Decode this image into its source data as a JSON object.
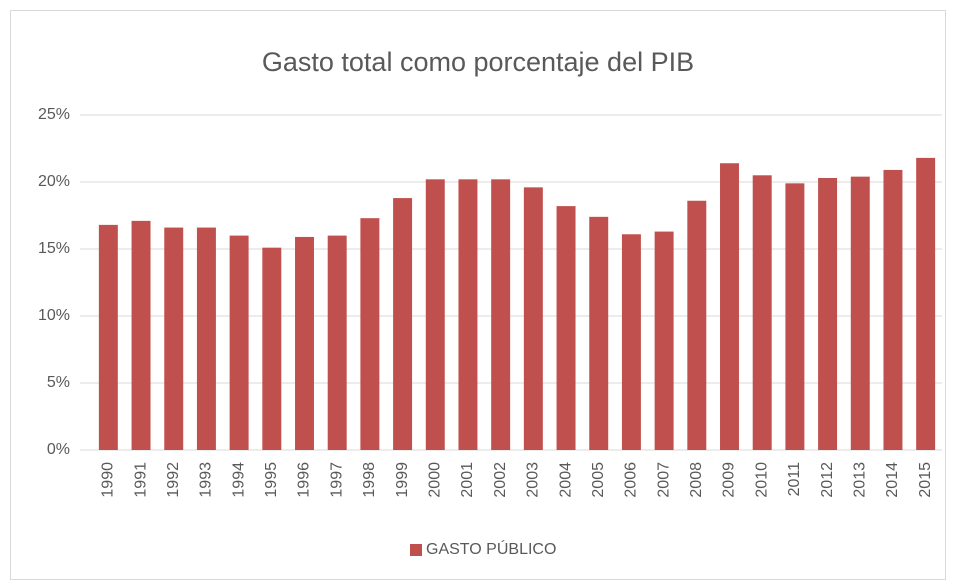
{
  "chart_data": {
    "type": "bar",
    "title": "Gasto total como porcentaje del PIB",
    "categories": [
      "1990",
      "1991",
      "1992",
      "1993",
      "1994",
      "1995",
      "1996",
      "1997",
      "1998",
      "1999",
      "2000",
      "2001",
      "2002",
      "2003",
      "2004",
      "2005",
      "2006",
      "2007",
      "2008",
      "2009",
      "2010",
      "2011",
      "2012",
      "2013",
      "2014",
      "2015"
    ],
    "series": [
      {
        "name": "GASTO PÚBLICO",
        "color": "#c0504d",
        "values": [
          16.8,
          17.1,
          16.6,
          16.6,
          16.0,
          15.1,
          15.9,
          16.0,
          17.3,
          18.8,
          20.2,
          20.2,
          20.2,
          19.6,
          18.2,
          17.4,
          16.1,
          16.3,
          18.6,
          21.4,
          20.5,
          19.9,
          20.3,
          20.4,
          20.9,
          21.8
        ]
      }
    ],
    "ylim": [
      0,
      25
    ],
    "yticks": [
      {
        "value": 0,
        "label": "0%"
      },
      {
        "value": 5,
        "label": "5%"
      },
      {
        "value": 10,
        "label": "10%"
      },
      {
        "value": 15,
        "label": "15%"
      },
      {
        "value": 20,
        "label": "20%"
      },
      {
        "value": 25,
        "label": "25%"
      }
    ],
    "grid": true,
    "legend": "bottom"
  }
}
